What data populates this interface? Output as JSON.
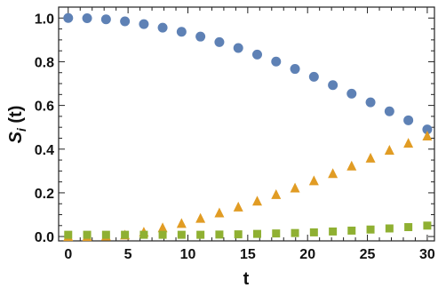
{
  "chart_data": {
    "type": "scatter",
    "xlabel": "t",
    "ylabel": "S",
    "ylabel_subscript": "i",
    "ylabel_suffix": " (t)",
    "xlim": [
      -0.8,
      30.6
    ],
    "ylim": [
      -0.02,
      1.05
    ],
    "xticks": [
      0,
      5,
      10,
      15,
      20,
      25,
      30
    ],
    "yticks": [
      0.0,
      0.2,
      0.4,
      0.6,
      0.8,
      1.0
    ],
    "ytick_labels": [
      "0.0",
      "0.2",
      "0.4",
      "0.6",
      "0.8",
      "1.0"
    ],
    "xtick_labels": [
      "0",
      "5",
      "10",
      "15",
      "20",
      "25",
      "30"
    ],
    "grid": false,
    "x": [
      0,
      1.58,
      3.16,
      4.74,
      6.32,
      7.89,
      9.47,
      11.05,
      12.63,
      14.21,
      15.79,
      17.37,
      18.95,
      20.53,
      22.11,
      23.68,
      25.26,
      26.84,
      28.42,
      30
    ],
    "series": [
      {
        "marker": "circle",
        "color": "#5e81b5",
        "values": [
          1.0,
          0.999,
          0.994,
          0.985,
          0.972,
          0.956,
          0.937,
          0.915,
          0.89,
          0.863,
          0.833,
          0.801,
          0.767,
          0.731,
          0.693,
          0.654,
          0.614,
          0.573,
          0.532,
          0.49
        ]
      },
      {
        "marker": "triangle",
        "color": "#e19c24",
        "values": [
          0.0,
          0.0,
          0.002,
          0.007,
          0.02,
          0.04,
          0.06,
          0.083,
          0.108,
          0.135,
          0.162,
          0.192,
          0.222,
          0.255,
          0.288,
          0.323,
          0.359,
          0.395,
          0.427,
          0.46
        ]
      },
      {
        "marker": "square",
        "color": "#8fb032",
        "values": [
          0.008,
          0.008,
          0.008,
          0.008,
          0.008,
          0.008,
          0.008,
          0.008,
          0.009,
          0.01,
          0.012,
          0.014,
          0.016,
          0.019,
          0.023,
          0.027,
          0.032,
          0.037,
          0.043,
          0.05
        ]
      }
    ]
  }
}
